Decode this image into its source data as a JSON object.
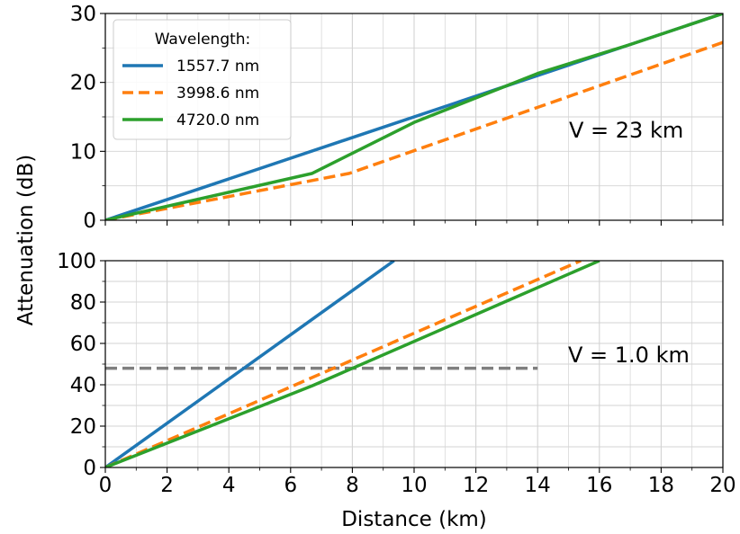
{
  "chart_data": [
    {
      "type": "line",
      "panel": "top",
      "xlim": [
        0,
        20
      ],
      "ylim": [
        0,
        30
      ],
      "x_ticks": [
        "0",
        "2",
        "4",
        "6",
        "8",
        "10",
        "12",
        "14",
        "16",
        "18",
        "20"
      ],
      "y_ticks": [
        "0",
        "10",
        "20",
        "30"
      ],
      "grid": true,
      "annotation": "V = 23 km",
      "legend": {
        "title": "Wavelength:",
        "placement": "top-left"
      },
      "series": [
        {
          "name": "1557.7 nm",
          "color": "#1f77b4",
          "style": "solid",
          "x": [
            0,
            20
          ],
          "y": [
            0,
            30
          ]
        },
        {
          "name": "3998.6 nm",
          "color": "#ff7f0e",
          "style": "dashed",
          "x": [
            0,
            7.9,
            20
          ],
          "y": [
            0,
            6.8,
            25.8
          ]
        },
        {
          "name": "4720.0 nm",
          "color": "#2ca02c",
          "style": "solid",
          "x": [
            0,
            6.7,
            10,
            14,
            17,
            20
          ],
          "y": [
            0,
            6.8,
            14.2,
            21.3,
            25.5,
            30
          ]
        }
      ]
    },
    {
      "type": "line",
      "panel": "bottom",
      "xlim": [
        0,
        20
      ],
      "ylim": [
        0,
        100
      ],
      "x_ticks": [
        "0",
        "2",
        "4",
        "6",
        "8",
        "10",
        "12",
        "14",
        "16",
        "18",
        "20"
      ],
      "y_ticks": [
        "0",
        "20",
        "40",
        "60",
        "80",
        "100"
      ],
      "xlabel": "Distance (km)",
      "grid": true,
      "annotation": "V = 1.0 km",
      "reference_line": {
        "y": 48,
        "x_range": [
          0,
          14
        ],
        "color": "#7f7f7f",
        "style": "dashed"
      },
      "series": [
        {
          "name": "1557.7 nm",
          "color": "#1f77b4",
          "style": "solid",
          "x": [
            0,
            9.35
          ],
          "y": [
            0,
            100
          ]
        },
        {
          "name": "3998.6 nm",
          "color": "#ff7f0e",
          "style": "dashed",
          "x": [
            0,
            15.4
          ],
          "y": [
            0,
            100
          ]
        },
        {
          "name": "4720.0 nm",
          "color": "#2ca02c",
          "style": "solid",
          "x": [
            0,
            6.7,
            16.0
          ],
          "y": [
            0,
            39.5,
            100
          ]
        }
      ]
    }
  ],
  "ylabel": "Attenuation (dB)"
}
